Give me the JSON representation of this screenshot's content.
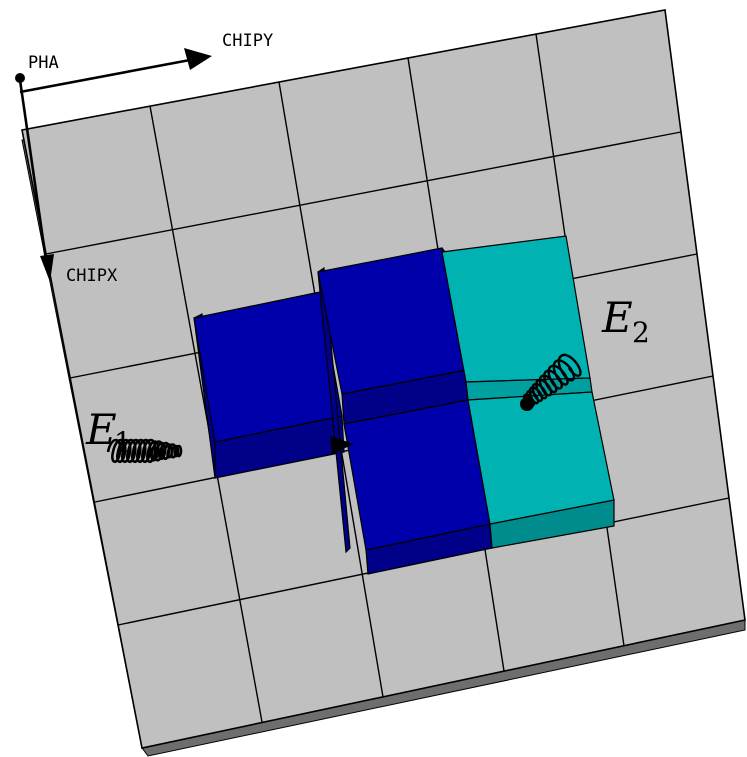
{
  "axes": {
    "origin_label": "PHA",
    "x_label": "CHIPY",
    "y_label": "CHIPX"
  },
  "photons": [
    {
      "symbol": "E",
      "subscript": "1"
    },
    {
      "symbol": "E",
      "subscript": "2"
    }
  ],
  "colors": {
    "pixel_face": "#c0c0c0",
    "pixel_edge": "#000000",
    "plate_side": "#6e6e6e",
    "event_dark_blue": "#0000aa",
    "event_dark_blue_side": "#000088",
    "event_cyan": "#00b2b2",
    "event_cyan_side": "#008c8c"
  }
}
